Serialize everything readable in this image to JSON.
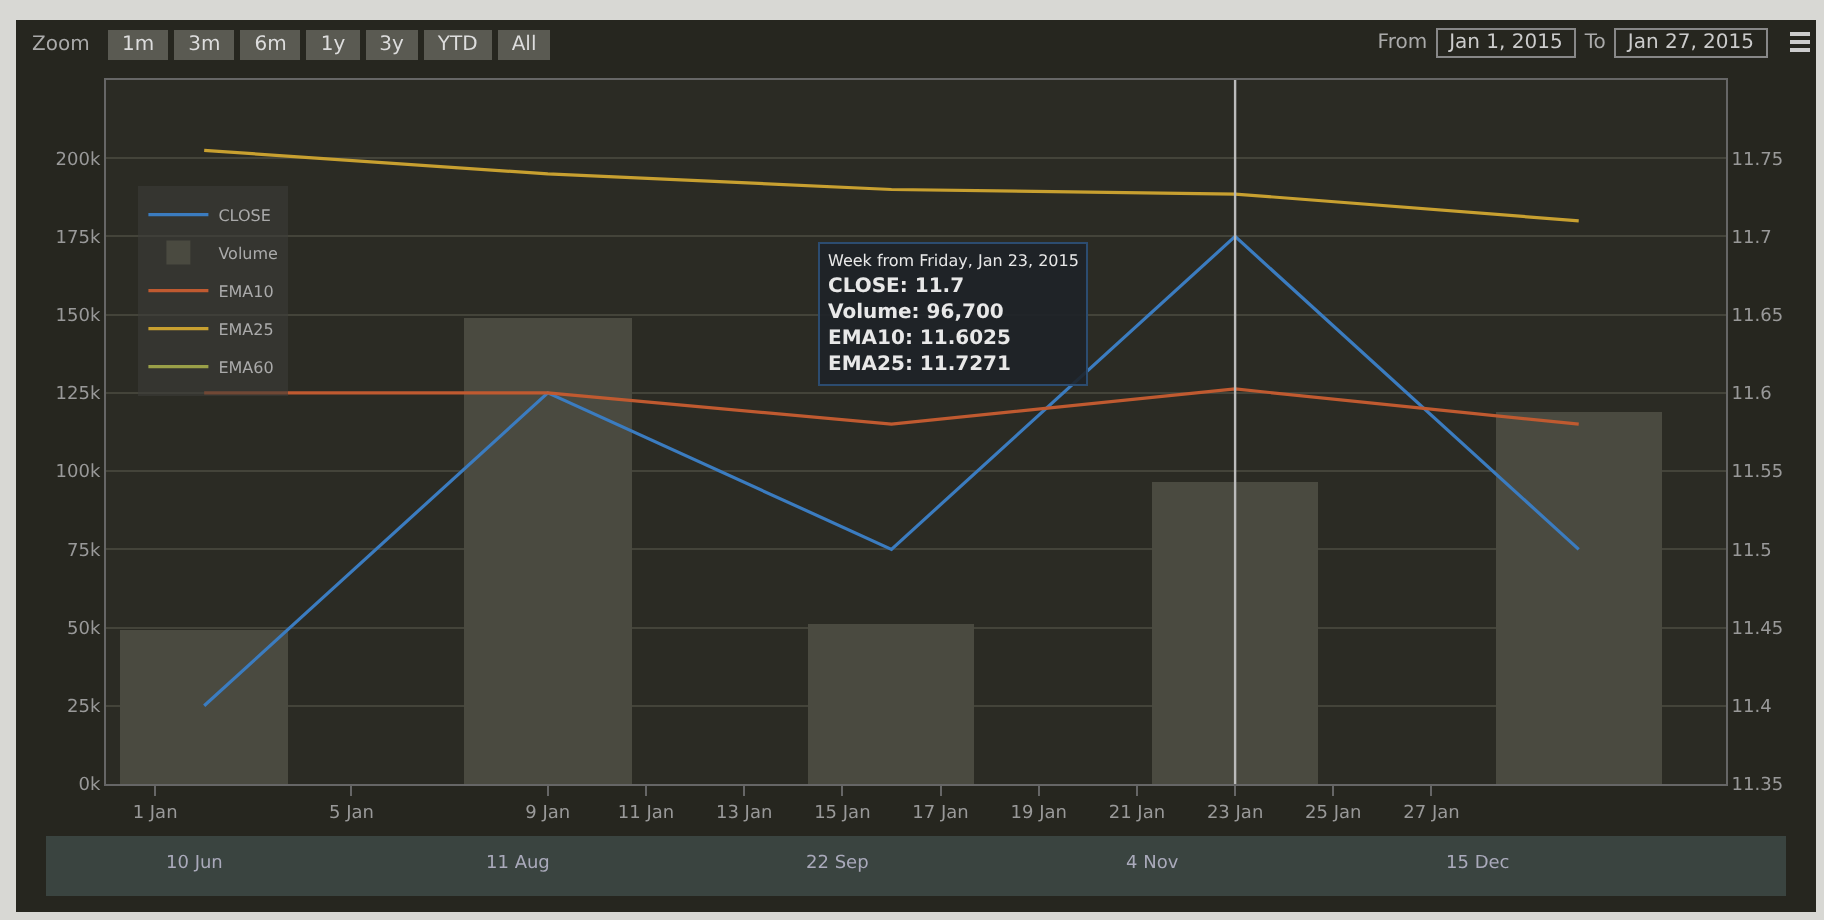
{
  "chart_data": {
    "type": "line",
    "x": [
      "2015-01-02",
      "2015-01-09",
      "2015-01-16",
      "2015-01-23",
      "2015-01-30"
    ],
    "series": [
      {
        "name": "CLOSE",
        "axis": "y2",
        "color": "#3b7cc0",
        "values": [
          11.4,
          11.6,
          11.5,
          11.7,
          11.5
        ]
      },
      {
        "name": "Volume",
        "type": "bar",
        "axis": "y",
        "color": "#4a4a40",
        "values": [
          49000,
          149000,
          51000,
          96700,
          119000
        ]
      },
      {
        "name": "EMA10",
        "axis": "y2",
        "color": "#c05a30",
        "values": [
          11.6,
          11.6,
          11.58,
          11.6025,
          11.58
        ]
      },
      {
        "name": "EMA25",
        "axis": "y2",
        "color": "#c8a030",
        "values": [
          11.755,
          11.74,
          11.73,
          11.7271,
          11.71
        ]
      },
      {
        "name": "EMA60",
        "axis": "y2",
        "color": "#9aa048",
        "values": [
          null,
          null,
          null,
          null,
          null
        ]
      }
    ],
    "xlim": [
      "2014-12-31",
      "2015-02-02"
    ],
    "xticks": [
      {
        "value": "2015-01-01",
        "label": "1 Jan"
      },
      {
        "value": "2015-01-05",
        "label": "5 Jan"
      },
      {
        "value": "2015-01-09",
        "label": "9 Jan"
      },
      {
        "value": "2015-01-11",
        "label": "11 Jan"
      },
      {
        "value": "2015-01-13",
        "label": "13 Jan"
      },
      {
        "value": "2015-01-15",
        "label": "15 Jan"
      },
      {
        "value": "2015-01-17",
        "label": "17 Jan"
      },
      {
        "value": "2015-01-19",
        "label": "19 Jan"
      },
      {
        "value": "2015-01-21",
        "label": "21 Jan"
      },
      {
        "value": "2015-01-23",
        "label": "23 Jan"
      },
      {
        "value": "2015-01-25",
        "label": "25 Jan"
      },
      {
        "value": "2015-01-27",
        "label": "27 Jan"
      }
    ],
    "ylim": [
      0,
      225000
    ],
    "yticks": [
      {
        "value": 0,
        "label": "0k"
      },
      {
        "value": 25000,
        "label": "25k"
      },
      {
        "value": 50000,
        "label": "50k"
      },
      {
        "value": 75000,
        "label": "75k"
      },
      {
        "value": 100000,
        "label": "100k"
      },
      {
        "value": 125000,
        "label": "125k"
      },
      {
        "value": 150000,
        "label": "150k"
      },
      {
        "value": 175000,
        "label": "175k"
      },
      {
        "value": 200000,
        "label": "200k"
      }
    ],
    "y2lim": [
      11.35,
      11.8
    ],
    "y2ticks": [
      11.35,
      11.4,
      11.45,
      11.5,
      11.55,
      11.6,
      11.65,
      11.7,
      11.75
    ],
    "grid": "y",
    "legend": "top left",
    "ref_lines": [
      {
        "axis": "x",
        "value": "2015-01-23",
        "color": "#bbbbbb"
      }
    ],
    "annotations": [
      "Week from Friday, Jan 23, 2015",
      "CLOSE: 11.7",
      "Volume: 96,700",
      "EMA10: 11.6025",
      "EMA25: 11.7271",
      "Zoom",
      "1m",
      "3m",
      "6m",
      "1y",
      "3y",
      "YTD",
      "All",
      "From",
      "Jan 1, 2015",
      "To",
      "Jan 27, 2015",
      "10 Jun",
      "11 Aug",
      "22 Sep",
      "4 Nov",
      "15 Dec"
    ]
  }
}
